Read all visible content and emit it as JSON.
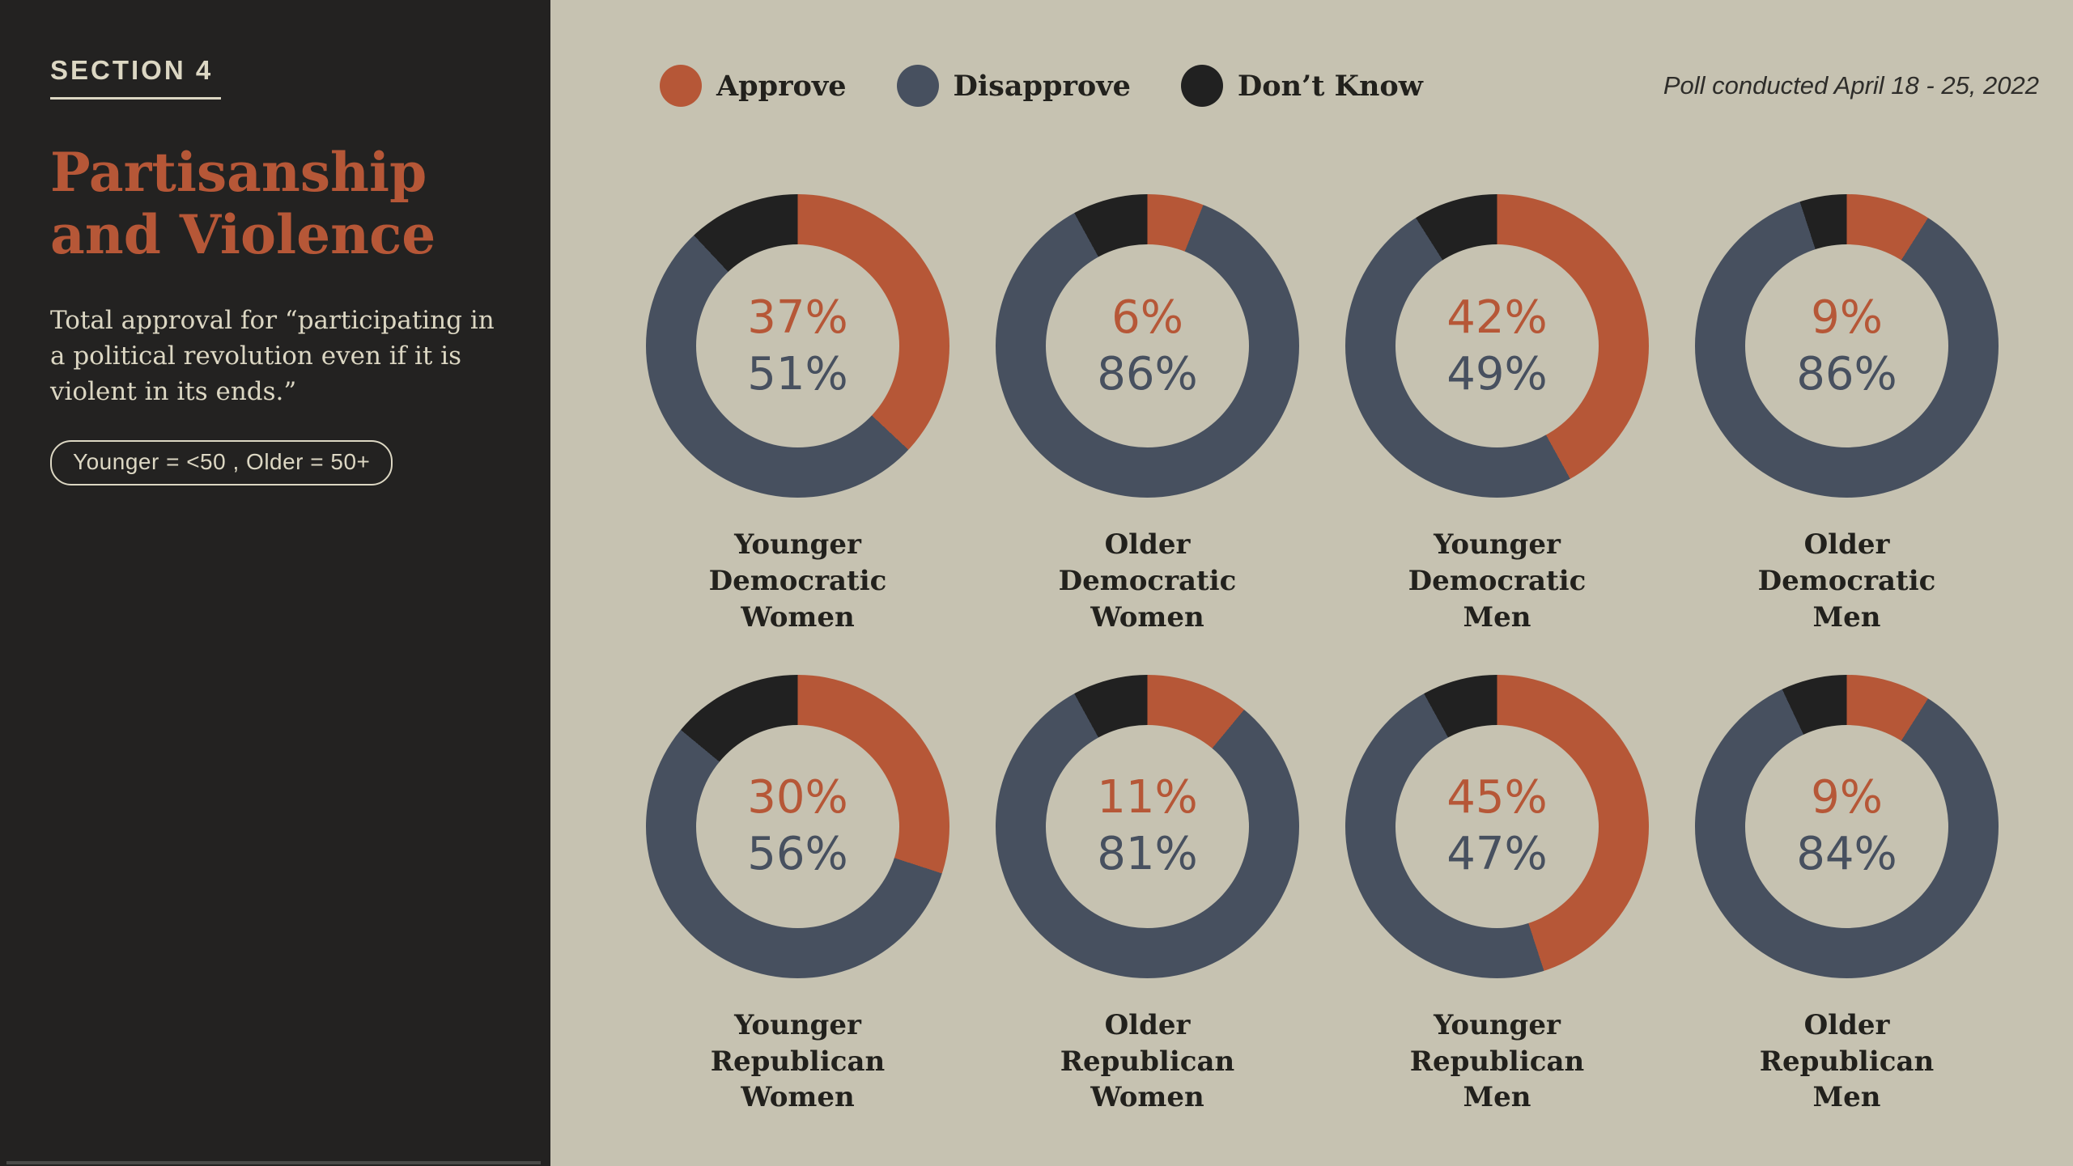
{
  "sidebar": {
    "section_label": "SECTION 4",
    "title": "Partisanship and Violence",
    "description": "Total approval for “participating in a political revolution even if it is violent in its ends.”",
    "age_note": "Younger = <50 , Older = 50+"
  },
  "header": {
    "poll_note": "Poll conducted April 18 - 25, 2022",
    "legend": [
      {
        "label": "Approve",
        "key": "approve"
      },
      {
        "label": "Disapprove",
        "key": "disapprove"
      },
      {
        "label": "Don’t Know",
        "key": "dont_know"
      }
    ]
  },
  "colors": {
    "approve": "#b65737",
    "disapprove": "#47505f",
    "dont_know": "#212121",
    "background": "#c6c2b1",
    "sidebar_background": "#232221",
    "sidebar_text": "#dcd7c3",
    "label_text": "#22211d",
    "title_accent": "#b65737"
  },
  "chart_data": {
    "type": "pie",
    "subtype": "donut-grid",
    "unit": "percent",
    "series_names": [
      "Approve",
      "Disapprove",
      "Don’t Know"
    ],
    "legend_position": "top",
    "center_text_shows": [
      "approve",
      "disapprove"
    ],
    "charts": [
      {
        "label": "Younger Democratic Women",
        "approve": 37,
        "disapprove": 51,
        "dont_know": 12
      },
      {
        "label": "Older Democratic Women",
        "approve": 6,
        "disapprove": 86,
        "dont_know": 8
      },
      {
        "label": "Younger Democratic Men",
        "approve": 42,
        "disapprove": 49,
        "dont_know": 9
      },
      {
        "label": "Older Democratic Men",
        "approve": 9,
        "disapprove": 86,
        "dont_know": 5
      },
      {
        "label": "Younger Republican Women",
        "approve": 30,
        "disapprove": 56,
        "dont_know": 14
      },
      {
        "label": "Older Republican Women",
        "approve": 11,
        "disapprove": 81,
        "dont_know": 8
      },
      {
        "label": "Younger Republican Men",
        "approve": 45,
        "disapprove": 47,
        "dont_know": 8
      },
      {
        "label": "Older Republican Men",
        "approve": 9,
        "disapprove": 84,
        "dont_know": 7
      }
    ]
  }
}
